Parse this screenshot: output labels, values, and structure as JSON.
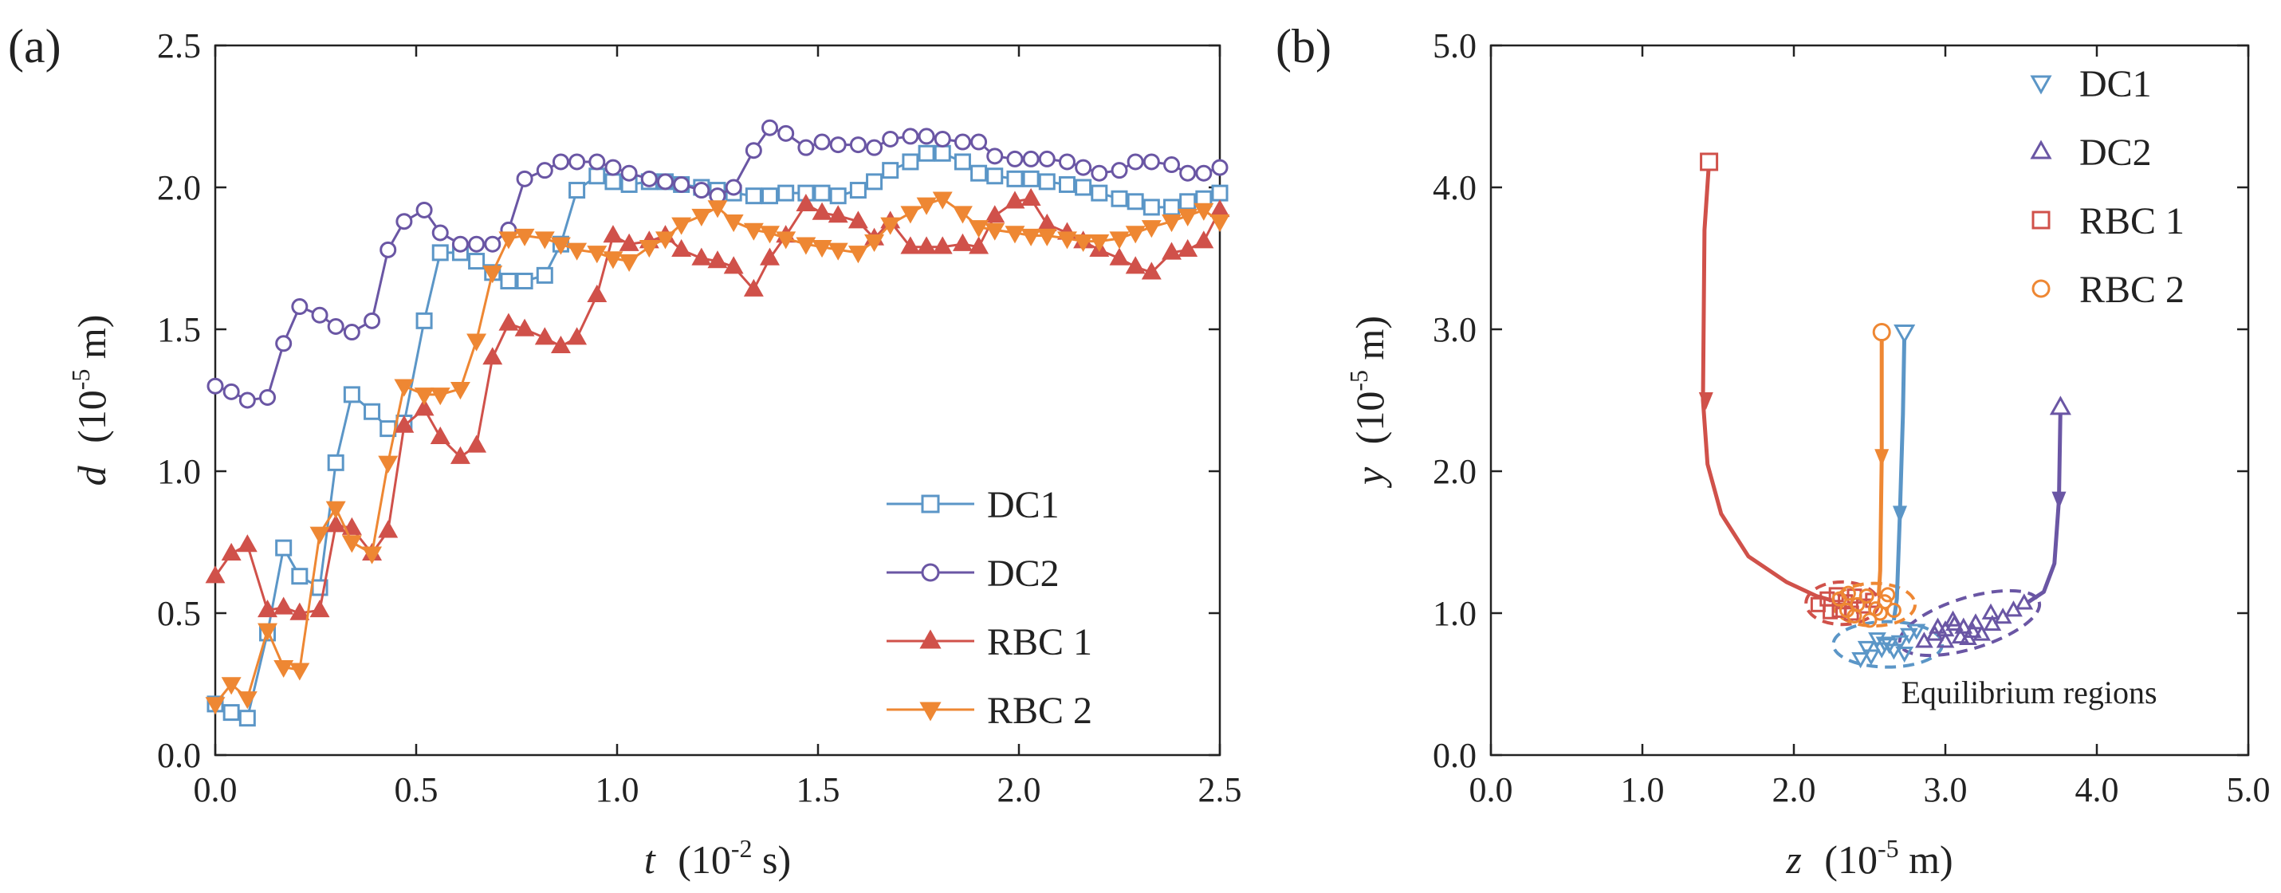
{
  "panels": {
    "a": {
      "label": "(a)"
    },
    "b": {
      "label": "(b)"
    }
  },
  "colors": {
    "DC1": "#5b96c7",
    "DC2": "#6a56a4",
    "RBC1": "#d0514a",
    "RBC2": "#ee8733"
  },
  "chart_data": [
    {
      "type": "line",
      "title": "",
      "xlabel": {
        "var": "t",
        "unit": "(10",
        "exp": "-2",
        "unit_end": " s)"
      },
      "ylabel": {
        "var": "d",
        "unit": "(10",
        "exp": "-5",
        "unit_end": " m)"
      },
      "xlim": [
        0,
        2.5
      ],
      "ylim": [
        0,
        2.5
      ],
      "xticks": [
        "0.0",
        "0.5",
        "1.0",
        "1.5",
        "2.0",
        "2.5"
      ],
      "yticks": [
        "0.0",
        "0.5",
        "1.0",
        "1.5",
        "2.0",
        "2.5"
      ],
      "legend": "bottom-right",
      "series": [
        {
          "name": "DC1",
          "key": "DC1",
          "marker": "square",
          "x": [
            0,
            0.04,
            0.08,
            0.13,
            0.17,
            0.21,
            0.26,
            0.3,
            0.34,
            0.39,
            0.43,
            0.47,
            0.52,
            0.56,
            0.61,
            0.65,
            0.69,
            0.73,
            0.77,
            0.82,
            0.86,
            0.9,
            0.95,
            0.99,
            1.03,
            1.08,
            1.12,
            1.16,
            1.21,
            1.25,
            1.29,
            1.34,
            1.38,
            1.42,
            1.47,
            1.51,
            1.55,
            1.6,
            1.64,
            1.68,
            1.73,
            1.77,
            1.81,
            1.86,
            1.9,
            1.94,
            1.99,
            2.03,
            2.07,
            2.12,
            2.16,
            2.2,
            2.25,
            2.29,
            2.33,
            2.38,
            2.42,
            2.46,
            2.5
          ],
          "y": [
            0.18,
            0.15,
            0.13,
            0.43,
            0.73,
            0.63,
            0.59,
            1.03,
            1.27,
            1.21,
            1.15,
            1.17,
            1.53,
            1.77,
            1.77,
            1.74,
            1.7,
            1.67,
            1.67,
            1.69,
            1.8,
            1.99,
            2.04,
            2.02,
            2.01,
            2.02,
            2.02,
            2.01,
            2.0,
            1.99,
            1.98,
            1.97,
            1.97,
            1.98,
            1.98,
            1.98,
            1.97,
            1.99,
            2.02,
            2.06,
            2.09,
            2.12,
            2.12,
            2.09,
            2.05,
            2.04,
            2.03,
            2.03,
            2.02,
            2.01,
            2.0,
            1.98,
            1.96,
            1.95,
            1.93,
            1.93,
            1.95,
            1.96,
            1.98
          ]
        },
        {
          "name": "DC2",
          "key": "DC2",
          "marker": "circle",
          "x": [
            0,
            0.04,
            0.08,
            0.13,
            0.17,
            0.21,
            0.26,
            0.3,
            0.34,
            0.39,
            0.43,
            0.47,
            0.52,
            0.56,
            0.61,
            0.65,
            0.69,
            0.73,
            0.77,
            0.82,
            0.86,
            0.9,
            0.95,
            0.99,
            1.03,
            1.08,
            1.12,
            1.16,
            1.21,
            1.25,
            1.29,
            1.34,
            1.38,
            1.42,
            1.47,
            1.51,
            1.55,
            1.6,
            1.64,
            1.68,
            1.73,
            1.77,
            1.81,
            1.86,
            1.9,
            1.94,
            1.99,
            2.03,
            2.07,
            2.12,
            2.16,
            2.2,
            2.25,
            2.29,
            2.33,
            2.38,
            2.42,
            2.46,
            2.5
          ],
          "y": [
            1.3,
            1.28,
            1.25,
            1.26,
            1.45,
            1.58,
            1.55,
            1.51,
            1.49,
            1.53,
            1.78,
            1.88,
            1.92,
            1.84,
            1.8,
            1.8,
            1.8,
            1.85,
            2.03,
            2.06,
            2.09,
            2.09,
            2.09,
            2.07,
            2.05,
            2.03,
            2.02,
            2.01,
            1.99,
            1.97,
            2.0,
            2.13,
            2.21,
            2.19,
            2.14,
            2.16,
            2.15,
            2.15,
            2.14,
            2.17,
            2.18,
            2.18,
            2.17,
            2.16,
            2.16,
            2.11,
            2.1,
            2.1,
            2.1,
            2.09,
            2.07,
            2.05,
            2.06,
            2.09,
            2.09,
            2.08,
            2.05,
            2.05,
            2.07
          ]
        },
        {
          "name": "RBC 1",
          "key": "RBC1",
          "marker": "triangle-up",
          "x": [
            0,
            0.04,
            0.08,
            0.13,
            0.17,
            0.21,
            0.26,
            0.3,
            0.34,
            0.39,
            0.43,
            0.47,
            0.52,
            0.56,
            0.61,
            0.65,
            0.69,
            0.73,
            0.77,
            0.82,
            0.86,
            0.9,
            0.95,
            0.99,
            1.03,
            1.08,
            1.12,
            1.16,
            1.21,
            1.25,
            1.29,
            1.34,
            1.38,
            1.42,
            1.47,
            1.51,
            1.55,
            1.6,
            1.64,
            1.68,
            1.73,
            1.77,
            1.81,
            1.86,
            1.9,
            1.94,
            1.99,
            2.03,
            2.07,
            2.12,
            2.16,
            2.2,
            2.25,
            2.29,
            2.33,
            2.38,
            2.42,
            2.46,
            2.5
          ],
          "y": [
            0.63,
            0.71,
            0.74,
            0.51,
            0.52,
            0.5,
            0.51,
            0.81,
            0.8,
            0.71,
            0.79,
            1.16,
            1.22,
            1.12,
            1.05,
            1.09,
            1.4,
            1.52,
            1.5,
            1.47,
            1.44,
            1.47,
            1.62,
            1.83,
            1.8,
            1.81,
            1.83,
            1.78,
            1.75,
            1.74,
            1.72,
            1.64,
            1.75,
            1.83,
            1.94,
            1.91,
            1.9,
            1.88,
            1.82,
            1.88,
            1.79,
            1.79,
            1.79,
            1.8,
            1.79,
            1.9,
            1.95,
            1.96,
            1.87,
            1.84,
            1.81,
            1.78,
            1.75,
            1.72,
            1.7,
            1.77,
            1.78,
            1.81,
            1.92
          ]
        },
        {
          "name": "RBC 2",
          "key": "RBC2",
          "marker": "triangle-down",
          "x": [
            0,
            0.04,
            0.08,
            0.13,
            0.17,
            0.21,
            0.26,
            0.3,
            0.34,
            0.39,
            0.43,
            0.47,
            0.52,
            0.56,
            0.61,
            0.65,
            0.69,
            0.73,
            0.77,
            0.82,
            0.86,
            0.9,
            0.95,
            0.99,
            1.03,
            1.08,
            1.12,
            1.16,
            1.21,
            1.25,
            1.29,
            1.34,
            1.38,
            1.42,
            1.47,
            1.51,
            1.55,
            1.6,
            1.64,
            1.68,
            1.73,
            1.77,
            1.81,
            1.86,
            1.9,
            1.94,
            1.99,
            2.03,
            2.07,
            2.12,
            2.16,
            2.2,
            2.25,
            2.29,
            2.33,
            2.38,
            2.42,
            2.46,
            2.5
          ],
          "y": [
            0.18,
            0.25,
            0.2,
            0.44,
            0.31,
            0.3,
            0.78,
            0.87,
            0.75,
            0.71,
            1.03,
            1.3,
            1.27,
            1.27,
            1.29,
            1.46,
            1.7,
            1.82,
            1.83,
            1.82,
            1.8,
            1.78,
            1.77,
            1.75,
            1.74,
            1.79,
            1.82,
            1.87,
            1.9,
            1.93,
            1.88,
            1.85,
            1.84,
            1.82,
            1.8,
            1.79,
            1.78,
            1.77,
            1.81,
            1.87,
            1.91,
            1.94,
            1.96,
            1.91,
            1.86,
            1.85,
            1.84,
            1.83,
            1.83,
            1.82,
            1.81,
            1.81,
            1.82,
            1.84,
            1.86,
            1.88,
            1.9,
            1.92,
            1.88
          ]
        }
      ]
    },
    {
      "type": "line",
      "title": "",
      "xlabel": {
        "var": "z",
        "unit": "(10",
        "exp": "-5",
        "unit_end": " m)"
      },
      "ylabel": {
        "var": "y",
        "unit": "(10",
        "exp": "-5",
        "unit_end": " m)"
      },
      "xlim": [
        0,
        5
      ],
      "ylim": [
        0,
        5
      ],
      "xticks": [
        "0.0",
        "1.0",
        "2.0",
        "3.0",
        "4.0",
        "5.0"
      ],
      "yticks": [
        "0.0",
        "1.0",
        "2.0",
        "3.0",
        "4.0",
        "5.0"
      ],
      "legend": "top-right",
      "annotation": "Equilibrium regions",
      "series": [
        {
          "name": "DC1",
          "key": "DC1",
          "marker": "triangle-down",
          "path_x": [
            2.73,
            2.72,
            2.7,
            2.68,
            2.66
          ],
          "path_y": [
            2.98,
            2.4,
            1.7,
            1.1,
            0.95
          ],
          "arrows": [
            [
              2.7,
              1.7
            ]
          ],
          "start": [
            2.73,
            2.98
          ],
          "scatter_x": [
            2.44,
            2.51,
            2.58,
            2.63,
            2.7,
            2.76,
            2.81,
            2.55,
            2.66,
            2.48,
            2.73,
            2.6
          ],
          "scatter_y": [
            0.68,
            0.7,
            0.75,
            0.78,
            0.8,
            0.85,
            0.88,
            0.82,
            0.74,
            0.76,
            0.72,
            0.79
          ],
          "region": {
            "cx": 2.62,
            "cy": 0.78,
            "rx": 0.36,
            "ry": 0.16,
            "angle": 0
          }
        },
        {
          "name": "DC2",
          "key": "DC2",
          "marker": "triangle-up",
          "path_x": [
            3.76,
            3.75,
            3.72,
            3.65,
            3.55
          ],
          "path_y": [
            2.45,
            1.8,
            1.35,
            1.15,
            1.08
          ],
          "arrows": [
            [
              3.75,
              1.8
            ]
          ],
          "start": [
            3.76,
            2.45
          ],
          "scatter_x": [
            2.86,
            2.93,
            3.0,
            3.06,
            3.12,
            3.18,
            3.24,
            3.31,
            3.38,
            3.45,
            3.52,
            3.0,
            3.1,
            3.2,
            3.3,
            2.95,
            3.05,
            3.15
          ],
          "scatter_y": [
            0.8,
            0.85,
            0.88,
            0.92,
            0.9,
            0.87,
            0.85,
            0.92,
            0.97,
            1.02,
            1.07,
            0.8,
            0.83,
            0.93,
            1.0,
            0.9,
            0.95,
            0.82
          ],
          "region": {
            "cx": 3.16,
            "cy": 0.93,
            "rx": 0.48,
            "ry": 0.18,
            "angle": -17
          }
        },
        {
          "name": "RBC 1",
          "key": "RBC1",
          "marker": "square",
          "path_x": [
            1.44,
            1.41,
            1.4,
            1.43,
            1.52,
            1.7,
            1.95,
            2.15,
            2.25
          ],
          "path_y": [
            4.18,
            3.7,
            2.5,
            2.05,
            1.7,
            1.4,
            1.22,
            1.12,
            1.09
          ],
          "arrows": [
            [
              1.42,
              2.5
            ]
          ],
          "start": [
            1.44,
            4.18
          ],
          "scatter_x": [
            2.16,
            2.22,
            2.28,
            2.34,
            2.4,
            2.46,
            2.52,
            2.3,
            2.38,
            2.24
          ],
          "scatter_y": [
            1.06,
            1.1,
            1.13,
            1.08,
            1.12,
            1.05,
            1.09,
            1.02,
            1.0,
            1.01
          ],
          "region": {
            "cx": 2.32,
            "cy": 1.07,
            "rx": 0.24,
            "ry": 0.15,
            "angle": 0
          }
        },
        {
          "name": "RBC 2",
          "key": "RBC2",
          "marker": "circle",
          "path_x": [
            2.58,
            2.58,
            2.57,
            2.56
          ],
          "path_y": [
            2.98,
            2.1,
            1.3,
            1.12
          ],
          "arrows": [
            [
              2.58,
              2.1
            ]
          ],
          "start": [
            2.58,
            2.98
          ],
          "scatter_x": [
            2.3,
            2.36,
            2.42,
            2.48,
            2.54,
            2.6,
            2.66,
            2.4,
            2.5,
            2.57,
            2.35,
            2.62
          ],
          "scatter_y": [
            1.1,
            1.14,
            1.06,
            1.12,
            1.03,
            1.08,
            1.02,
            0.98,
            0.95,
            1.0,
            1.02,
            1.13
          ],
          "region": {
            "cx": 2.53,
            "cy": 1.06,
            "rx": 0.27,
            "ry": 0.15,
            "angle": 0
          }
        }
      ]
    }
  ]
}
